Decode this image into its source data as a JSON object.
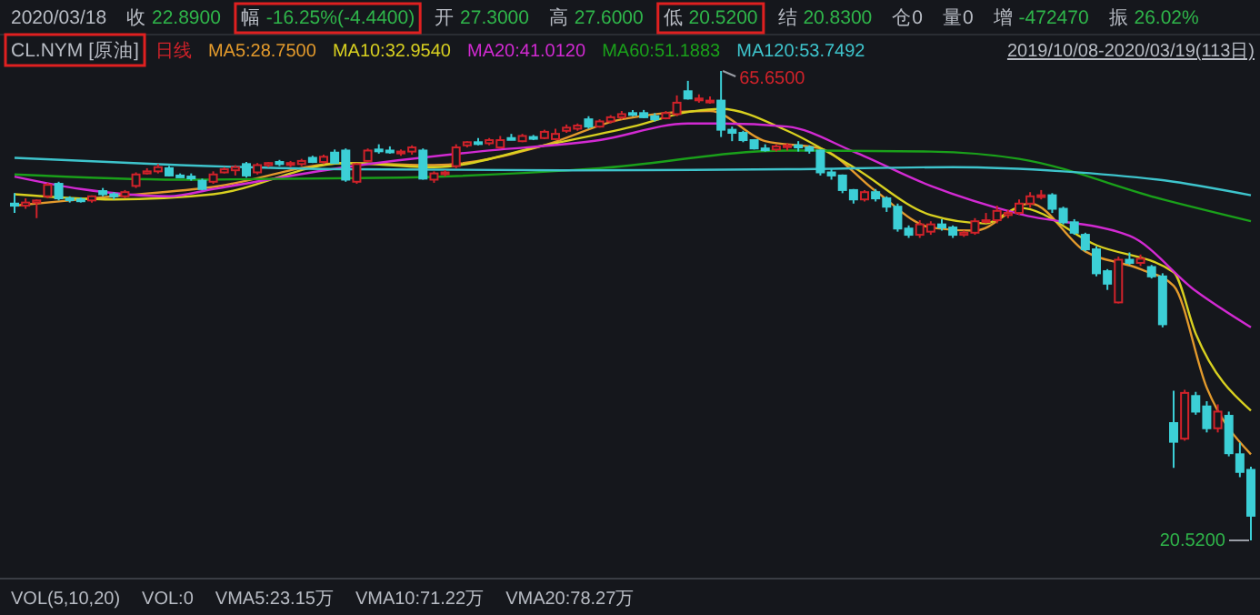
{
  "chart_data": {
    "type": "candlestick",
    "title": "CL.NYM [原油]",
    "subtitle": "2019/10/08-2020/03/19(113日)",
    "legend": "top left",
    "annotations": [
      "2020/03/18",
      "收 22.8900",
      "幅 -16.25%(-4.4400)",
      "开 27.3000",
      "高 27.6000",
      "低 20.5200",
      "结 20.8300",
      "仓0",
      "量0",
      "增 -472470",
      "振 26.02%",
      "日线",
      "VOL(5,10,20)",
      "VOL:0",
      "VMA5:23.15万",
      "VMA10:71.22万",
      "VMA20:78.27万",
      "65.6500",
      "20.5200"
    ],
    "categories": [
      null,
      null,
      null,
      null,
      null,
      null,
      null,
      null,
      null,
      null,
      null,
      null,
      null,
      null,
      null,
      null,
      null,
      null,
      null,
      null,
      null,
      null,
      null,
      null,
      null,
      null,
      null,
      null,
      null,
      null,
      null,
      null,
      null,
      null,
      null,
      null,
      null,
      null,
      null,
      null,
      null,
      null,
      null,
      null,
      null,
      null,
      null,
      null,
      null,
      null,
      null,
      null,
      null,
      null,
      null,
      null,
      null,
      null,
      null,
      null,
      null,
      null,
      null,
      null,
      null,
      null,
      null,
      null,
      null,
      null,
      null,
      null,
      null,
      null,
      null,
      null,
      null,
      null,
      null,
      null,
      null,
      null,
      null,
      null,
      null,
      null,
      null,
      null,
      null,
      null,
      null,
      null,
      null,
      null,
      null,
      null,
      null,
      null,
      null,
      null,
      null,
      null,
      null,
      null,
      null,
      null,
      null,
      null,
      null,
      null,
      null,
      null,
      null
    ],
    "ohlc": [
      [
        52.9,
        53.9,
        52.0,
        52.7
      ],
      [
        52.7,
        53.4,
        52.4,
        53.0
      ],
      [
        53.0,
        53.3,
        51.5,
        53.2
      ],
      [
        53.6,
        54.9,
        53.4,
        54.7
      ],
      [
        54.8,
        55.0,
        53.2,
        53.4
      ],
      [
        53.4,
        53.6,
        53.0,
        53.3
      ],
      [
        53.3,
        53.5,
        53.0,
        53.2
      ],
      [
        53.2,
        53.7,
        53.0,
        53.6
      ],
      [
        54.1,
        54.4,
        53.6,
        53.8
      ],
      [
        53.8,
        54.0,
        53.3,
        53.6
      ],
      [
        53.6,
        54.2,
        53.4,
        54.0
      ],
      [
        54.6,
        55.9,
        54.4,
        55.7
      ],
      [
        55.8,
        56.3,
        55.7,
        56.0
      ],
      [
        56.0,
        56.7,
        55.8,
        56.4
      ],
      [
        56.3,
        56.5,
        55.5,
        55.6
      ],
      [
        55.6,
        55.8,
        55.4,
        55.5
      ],
      [
        55.5,
        55.8,
        55.1,
        55.4
      ],
      [
        55.1,
        55.3,
        54.2,
        54.3
      ],
      [
        55.0,
        56.0,
        54.8,
        55.7
      ],
      [
        55.9,
        56.4,
        55.8,
        56.2
      ],
      [
        56.1,
        56.6,
        55.6,
        56.4
      ],
      [
        56.7,
        56.9,
        55.4,
        55.6
      ],
      [
        55.9,
        56.8,
        55.7,
        56.6
      ],
      [
        56.6,
        56.9,
        56.4,
        56.8
      ],
      [
        56.9,
        57.1,
        56.5,
        56.7
      ],
      [
        56.7,
        57.0,
        56.4,
        56.8
      ],
      [
        56.7,
        57.2,
        56.5,
        57.0
      ],
      [
        57.3,
        57.5,
        56.8,
        56.9
      ],
      [
        56.9,
        57.6,
        56.7,
        57.4
      ],
      [
        57.8,
        58.1,
        56.7,
        56.8
      ],
      [
        58.0,
        58.2,
        55.0,
        55.2
      ],
      [
        55.0,
        56.8,
        54.8,
        56.7
      ],
      [
        57.0,
        58.2,
        56.9,
        58.0
      ],
      [
        58.1,
        58.6,
        57.7,
        58.0
      ],
      [
        58.0,
        58.4,
        57.7,
        57.9
      ],
      [
        57.8,
        58.1,
        57.5,
        57.9
      ],
      [
        57.9,
        58.5,
        57.6,
        58.3
      ],
      [
        58.0,
        58.2,
        55.2,
        55.3
      ],
      [
        55.2,
        56.0,
        54.9,
        55.8
      ],
      [
        55.8,
        56.1,
        55.5,
        55.9
      ],
      [
        56.5,
        58.6,
        56.3,
        58.3
      ],
      [
        58.5,
        58.9,
        58.3,
        58.8
      ],
      [
        58.8,
        59.2,
        58.5,
        58.7
      ],
      [
        58.7,
        59.2,
        58.5,
        59.0
      ],
      [
        58.3,
        59.4,
        58.2,
        59.0
      ],
      [
        59.2,
        59.6,
        59.0,
        59.1
      ],
      [
        58.9,
        59.6,
        58.8,
        59.4
      ],
      [
        59.3,
        59.5,
        59.0,
        59.2
      ],
      [
        59.2,
        60.0,
        59.1,
        59.8
      ],
      [
        59.1,
        60.1,
        59.0,
        59.6
      ],
      [
        59.9,
        60.5,
        59.7,
        60.2
      ],
      [
        60.1,
        60.6,
        59.9,
        60.4
      ],
      [
        61.0,
        61.3,
        60.1,
        60.3
      ],
      [
        60.3,
        61.0,
        60.2,
        60.8
      ],
      [
        60.8,
        61.4,
        60.6,
        61.2
      ],
      [
        61.2,
        61.8,
        61.0,
        61.5
      ],
      [
        61.6,
        61.9,
        61.3,
        61.5
      ],
      [
        61.6,
        61.9,
        61.1,
        61.2
      ],
      [
        61.3,
        61.6,
        60.8,
        61.0
      ],
      [
        61.1,
        61.8,
        61.0,
        61.6
      ],
      [
        61.5,
        63.3,
        61.3,
        62.6
      ],
      [
        63.7,
        64.7,
        62.9,
        63.0
      ],
      [
        62.9,
        63.4,
        62.6,
        63.0
      ],
      [
        62.7,
        63.2,
        62.5,
        62.8
      ],
      [
        62.8,
        65.65,
        59.3,
        60.0
      ],
      [
        60.0,
        60.3,
        58.9,
        59.7
      ],
      [
        59.7,
        59.9,
        58.8,
        59.0
      ],
      [
        59.0,
        59.1,
        58.1,
        58.2
      ],
      [
        58.2,
        58.6,
        57.9,
        58.1
      ],
      [
        58.1,
        58.6,
        57.9,
        58.4
      ],
      [
        58.4,
        58.7,
        58.0,
        58.5
      ],
      [
        58.5,
        58.9,
        57.9,
        58.3
      ],
      [
        58.3,
        58.5,
        57.7,
        58.0
      ],
      [
        58.0,
        58.1,
        55.6,
        55.9
      ],
      [
        55.9,
        56.2,
        55.2,
        55.6
      ],
      [
        55.6,
        55.7,
        53.9,
        54.2
      ],
      [
        54.2,
        54.3,
        52.9,
        53.3
      ],
      [
        53.3,
        54.2,
        53.1,
        54.0
      ],
      [
        54.0,
        54.3,
        53.1,
        53.4
      ],
      [
        53.4,
        53.6,
        52.1,
        52.6
      ],
      [
        52.6,
        52.9,
        50.2,
        50.5
      ],
      [
        50.5,
        50.8,
        49.6,
        49.9
      ],
      [
        49.9,
        51.3,
        49.6,
        50.9
      ],
      [
        50.2,
        51.2,
        49.9,
        50.9
      ],
      [
        50.9,
        51.4,
        50.3,
        50.6
      ],
      [
        50.6,
        50.8,
        49.6,
        49.9
      ],
      [
        49.9,
        50.3,
        49.7,
        50.1
      ],
      [
        50.1,
        51.5,
        49.9,
        51.2
      ],
      [
        51.2,
        52.0,
        51.0,
        51.3
      ],
      [
        51.3,
        52.7,
        51.0,
        52.2
      ],
      [
        51.8,
        52.3,
        51.5,
        52.0
      ],
      [
        52.0,
        53.3,
        51.8,
        52.9
      ],
      [
        52.9,
        54.0,
        52.5,
        53.6
      ],
      [
        53.6,
        54.2,
        53.3,
        53.7
      ],
      [
        53.7,
        53.9,
        52.0,
        52.4
      ],
      [
        52.4,
        52.6,
        50.9,
        51.1
      ],
      [
        51.1,
        51.4,
        49.9,
        50.1
      ],
      [
        49.9,
        50.1,
        48.3,
        48.5
      ],
      [
        48.5,
        48.8,
        45.9,
        46.2
      ],
      [
        46.4,
        46.6,
        44.6,
        45.2
      ],
      [
        43.4,
        47.8,
        43.3,
        47.5
      ],
      [
        47.5,
        48.2,
        47.0,
        47.2
      ],
      [
        47.2,
        48.0,
        46.9,
        47.6
      ],
      [
        46.8,
        47.0,
        45.7,
        45.9
      ],
      [
        45.9,
        46.2,
        41.0,
        41.3
      ],
      [
        31.8,
        34.9,
        27.5,
        30.0
      ],
      [
        30.3,
        35.0,
        30.1,
        34.7
      ],
      [
        34.4,
        34.8,
        32.6,
        32.9
      ],
      [
        33.4,
        33.9,
        30.9,
        31.3
      ],
      [
        31.3,
        33.6,
        30.9,
        32.9
      ],
      [
        32.5,
        32.9,
        28.6,
        28.9
      ],
      [
        28.8,
        29.9,
        26.6,
        27.1
      ],
      [
        27.3,
        27.6,
        20.52,
        22.89
      ]
    ],
    "series": [
      {
        "type": "line",
        "name": "MA5:28.7500",
        "color": "#e39a2c",
        "values": [
          52.7,
          null,
          null,
          null,
          null,
          null,
          null,
          null,
          null,
          53.6,
          null,
          null,
          null,
          null,
          null,
          null,
          null,
          null,
          54.5,
          null,
          null,
          null,
          null,
          null,
          null,
          null,
          null,
          null,
          null,
          null,
          56.8,
          null,
          null,
          null,
          null,
          null,
          null,
          null,
          56.6,
          null,
          null,
          null,
          null,
          null,
          null,
          null,
          null,
          null,
          58.5,
          null,
          null,
          null,
          null,
          null,
          null,
          61.0,
          null,
          null,
          null,
          null,
          null,
          null,
          null,
          61.8,
          null,
          null,
          null,
          null,
          58.9,
          null,
          null,
          null,
          null,
          58.2,
          null,
          null,
          null,
          null,
          54.1,
          null,
          null,
          null,
          null,
          50.6,
          null,
          null,
          null,
          50.3,
          null,
          null,
          null,
          null,
          52.9,
          null,
          null,
          null,
          null,
          48.3,
          null,
          null,
          null,
          null,
          46.6,
          null,
          null,
          45.0,
          null,
          null,
          35.2,
          null,
          null,
          null,
          28.8
        ]
      },
      {
        "type": "line",
        "name": "MA10:32.9540",
        "color": "#d8d020",
        "values": [
          53.8,
          null,
          null,
          null,
          null,
          null,
          null,
          null,
          null,
          53.3,
          null,
          null,
          null,
          null,
          null,
          null,
          null,
          null,
          53.8,
          null,
          null,
          null,
          null,
          null,
          null,
          null,
          null,
          null,
          null,
          null,
          56.8,
          null,
          null,
          null,
          null,
          null,
          null,
          null,
          56.4,
          null,
          null,
          null,
          null,
          null,
          null,
          null,
          null,
          null,
          58.5,
          null,
          null,
          null,
          null,
          null,
          null,
          null,
          60.3,
          null,
          null,
          null,
          null,
          61.7,
          null,
          null,
          62.0,
          null,
          null,
          null,
          null,
          null,
          59.9,
          null,
          null,
          null,
          null,
          null,
          56.4,
          null,
          null,
          null,
          null,
          null,
          null,
          51.8,
          null,
          null,
          null,
          null,
          51.0,
          null,
          null,
          52.5,
          null,
          null,
          null,
          null,
          null,
          null,
          48.9,
          null,
          null,
          null,
          null,
          null,
          null,
          46.3,
          null,
          40.4,
          null,
          null,
          null,
          null,
          33.0
        ]
      },
      {
        "type": "line",
        "name": "MA20:41.0120",
        "color": "#d22ad2",
        "values": [
          55.5,
          null,
          null,
          null,
          null,
          null,
          54.3,
          null,
          null,
          null,
          null,
          null,
          null,
          null,
          53.6,
          null,
          null,
          null,
          54.3,
          null,
          null,
          null,
          null,
          null,
          null,
          null,
          null,
          null,
          null,
          null,
          56.4,
          null,
          null,
          null,
          null,
          null,
          null,
          null,
          null,
          null,
          null,
          null,
          57.9,
          null,
          null,
          null,
          null,
          null,
          null,
          null,
          null,
          null,
          null,
          59.0,
          null,
          null,
          null,
          null,
          null,
          null,
          null,
          60.6,
          null,
          null,
          60.6,
          null,
          null,
          null,
          null,
          null,
          60.3,
          null,
          null,
          null,
          null,
          null,
          57.9,
          null,
          null,
          null,
          null,
          null,
          null,
          54.6,
          null,
          null,
          null,
          null,
          null,
          null,
          null,
          51.9,
          null,
          null,
          null,
          null,
          null,
          null,
          null,
          null,
          null,
          49.8,
          null,
          null,
          null,
          null,
          null,
          44.5,
          null,
          null,
          null,
          null,
          41.0
        ]
      },
      {
        "type": "line",
        "name": "MA60:51.1883",
        "color": "#1aa01a",
        "values": [
          55.7,
          null,
          null,
          null,
          null,
          null,
          null,
          null,
          null,
          null,
          null,
          null,
          null,
          null,
          null,
          55.2,
          null,
          null,
          null,
          null,
          null,
          null,
          null,
          null,
          null,
          null,
          null,
          null,
          null,
          null,
          null,
          null,
          null,
          null,
          null,
          55.4,
          null,
          null,
          null,
          null,
          null,
          null,
          null,
          null,
          null,
          null,
          null,
          null,
          null,
          null,
          null,
          null,
          null,
          56.3,
          null,
          null,
          null,
          null,
          null,
          null,
          null,
          null,
          null,
          null,
          null,
          null,
          null,
          null,
          null,
          null,
          58.0,
          null,
          null,
          null,
          null,
          null,
          null,
          null,
          null,
          null,
          null,
          null,
          null,
          57.9,
          null,
          null,
          null,
          null,
          null,
          null,
          null,
          57.2,
          null,
          null,
          null,
          null,
          null,
          null,
          null,
          null,
          null,
          null,
          null,
          null,
          53.3,
          null,
          null,
          null,
          null,
          null,
          null,
          null,
          51.2
        ]
      },
      {
        "type": "line",
        "name": "MA120:53.7492",
        "color": "#3ec4cc",
        "values": [
          57.3,
          null,
          null,
          null,
          null,
          null,
          null,
          null,
          null,
          null,
          null,
          null,
          null,
          null,
          null,
          56.6,
          null,
          null,
          null,
          null,
          null,
          null,
          null,
          null,
          null,
          null,
          null,
          null,
          null,
          null,
          56.2,
          null,
          null,
          null,
          null,
          null,
          null,
          null,
          null,
          null,
          null,
          null,
          null,
          null,
          null,
          null,
          null,
          null,
          null,
          null,
          56.1,
          null,
          null,
          null,
          null,
          null,
          null,
          null,
          null,
          null,
          null,
          null,
          null,
          null,
          null,
          null,
          null,
          null,
          null,
          null,
          56.2,
          null,
          null,
          null,
          null,
          null,
          null,
          null,
          null,
          null,
          null,
          null,
          null,
          null,
          null,
          56.4,
          null,
          null,
          null,
          null,
          null,
          null,
          null,
          null,
          null,
          56.0,
          null,
          null,
          null,
          null,
          null,
          null,
          null,
          null,
          null,
          55.0,
          null,
          null,
          null,
          null,
          null,
          null,
          53.7
        ]
      }
    ]
  }
}
